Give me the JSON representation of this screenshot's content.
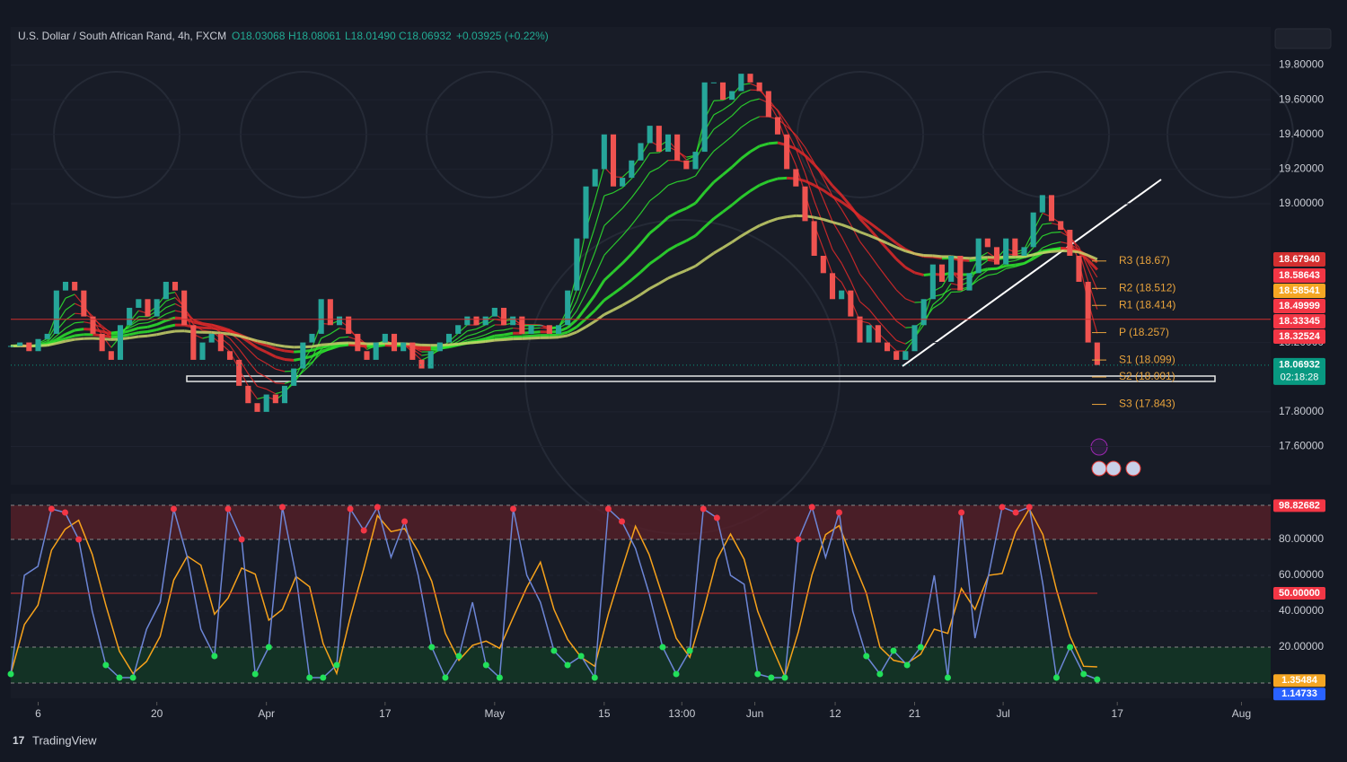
{
  "header": {
    "symbol": "U.S. Dollar / South African Rand, 4h, FXCM",
    "open": "O18.03068",
    "high": "H18.08061",
    "low": "L18.01490",
    "close": "C18.06932",
    "change": "+0.03925 (+0.22%)"
  },
  "chart_data": [
    {
      "type": "candlestick",
      "up_color": "#26a69a",
      "down_color": "#ef5350",
      "values": [
        18.18,
        18.2,
        18.15,
        18.22,
        18.25,
        18.5,
        18.55,
        18.5,
        18.35,
        18.25,
        18.15,
        18.1,
        18.3,
        18.4,
        18.45,
        18.35,
        18.45,
        18.55,
        18.5,
        18.3,
        18.1,
        18.2,
        18.25,
        18.15,
        18.1,
        17.95,
        17.85,
        17.8,
        17.9,
        17.85,
        17.95,
        18.05,
        18.2,
        18.25,
        18.45,
        18.3,
        18.35,
        18.25,
        18.15,
        18.1,
        18.2,
        18.25,
        18.15,
        18.2,
        18.1,
        18.05,
        18.15,
        18.2,
        18.25,
        18.3,
        18.35,
        18.3,
        18.35,
        18.4,
        18.3,
        18.35,
        18.25,
        18.3,
        18.3,
        18.25,
        18.3,
        18.5,
        18.8,
        19.1,
        19.2,
        19.4,
        19.1,
        19.15,
        19.25,
        19.35,
        19.45,
        19.3,
        19.4,
        19.25,
        19.2,
        19.3,
        19.7,
        19.7,
        19.6,
        19.65,
        19.75,
        19.7,
        19.65,
        19.5,
        19.4,
        19.2,
        19.1,
        18.9,
        18.7,
        18.6,
        18.45,
        18.5,
        18.35,
        18.2,
        18.3,
        18.2,
        18.15,
        18.1,
        18.15,
        18.3,
        18.45,
        18.65,
        18.55,
        18.7,
        18.5,
        18.6,
        18.8,
        18.75,
        18.65,
        18.8,
        18.7,
        18.75,
        18.95,
        19.05,
        18.9,
        18.85,
        18.7,
        18.55,
        18.2,
        18.07
      ],
      "xlim": [
        0,
        138
      ],
      "xticks": [
        {
          "value": 3,
          "label": "6"
        },
        {
          "value": 16,
          "label": "20"
        },
        {
          "value": 28,
          "label": "Apr"
        },
        {
          "value": 41,
          "label": "17"
        },
        {
          "value": 53,
          "label": "May"
        },
        {
          "value": 65,
          "label": "15"
        },
        {
          "value": 73.5,
          "label": "13:00"
        },
        {
          "value": 81.5,
          "label": "Jun"
        },
        {
          "value": 90.3,
          "label": "12"
        },
        {
          "value": 99,
          "label": "21"
        },
        {
          "value": 108.7,
          "label": "Jul"
        },
        {
          "value": 121.2,
          "label": "17"
        },
        {
          "value": 134.8,
          "label": "Aug"
        }
      ],
      "ylim": [
        17.38,
        20.02
      ],
      "yticks": [
        {
          "value": 19.8,
          "label": "19.80000"
        },
        {
          "value": 19.6,
          "label": "19.60000"
        },
        {
          "value": 19.4,
          "label": "19.40000"
        },
        {
          "value": 19.2,
          "label": "19.20000"
        },
        {
          "value": 19.0,
          "label": "19.00000"
        },
        {
          "value": 18.2,
          "label": "18.20000"
        },
        {
          "value": 17.8,
          "label": "17.80000"
        },
        {
          "value": 17.6,
          "label": "17.60000"
        }
      ],
      "grid": true,
      "pivots": [
        {
          "value": 18.67,
          "label": "R3 (18.67)"
        },
        {
          "value": 18.512,
          "label": "R2 (18.512)"
        },
        {
          "value": 18.414,
          "label": "R1 (18.414)"
        },
        {
          "value": 18.257,
          "label": "P (18.257)"
        },
        {
          "value": 18.099,
          "label": "S1 (18.099)"
        },
        {
          "value": 18.001,
          "label": "S2 (18.001)"
        },
        {
          "value": 17.843,
          "label": "S3 (17.843)"
        }
      ],
      "pivot_color": "#e8a33c",
      "price_tags": [
        {
          "value": 18.6794,
          "label": "18.67940",
          "color": "#d32f2f"
        },
        {
          "value": 18.58643,
          "label": "18.58643",
          "color": "#f23645"
        },
        {
          "value": 18.58541,
          "label": "18.58541",
          "color": "#f5a623"
        },
        {
          "value": 18.49999,
          "label": "18.49999",
          "color": "#f23645"
        },
        {
          "value": 18.33345,
          "label": "18.33345",
          "color": "#f23645"
        },
        {
          "value": 18.32524,
          "label": "18.32524",
          "color": "#f23645"
        },
        {
          "value": 18.06932,
          "label": "18.06932",
          "color": "#089981"
        }
      ],
      "countdown": "02:18:28"
    },
    {
      "type": "line",
      "color": "#6d86d6",
      "signal_color": "#f7a21b",
      "values": [
        5,
        60,
        65,
        97,
        95,
        80,
        40,
        10,
        3,
        3,
        30,
        45,
        97,
        70,
        30,
        15,
        97,
        80,
        5,
        20,
        98,
        60,
        3,
        3,
        10,
        97,
        85,
        98,
        70,
        90,
        60,
        20,
        3,
        15,
        45,
        10,
        3,
        97,
        60,
        45,
        18,
        10,
        15,
        3,
        97,
        90,
        75,
        50,
        20,
        5,
        18,
        97,
        92,
        60,
        55,
        5,
        3,
        3,
        80,
        98,
        70,
        95,
        40,
        15,
        5,
        18,
        10,
        20,
        60,
        3,
        95,
        25,
        60,
        98,
        95,
        98,
        55,
        3,
        20,
        5,
        2
      ],
      "ylim": [
        -7,
        103
      ],
      "yticks": [
        {
          "value": 80,
          "label": "80.00000"
        },
        {
          "value": 60,
          "label": "60.00000"
        },
        {
          "value": 40,
          "label": "40.00000"
        },
        {
          "value": 20,
          "label": "20.00000"
        }
      ],
      "value_tags": [
        {
          "value": 98.82682,
          "label": "98.82682",
          "color": "#f23645"
        },
        {
          "value": 50,
          "label": "50.00000",
          "color": "#f23645"
        },
        {
          "value": 1.35484,
          "label": "1.35484",
          "color": "#f5a623"
        },
        {
          "value": 1.14733,
          "label": "1.14733",
          "color": "#2962ff"
        }
      ]
    }
  ],
  "footer": {
    "brand": "TradingView"
  }
}
